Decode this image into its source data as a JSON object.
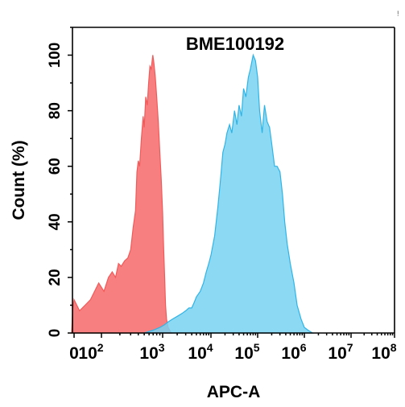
{
  "chart_data": {
    "type": "area",
    "title": "BME100192",
    "xlabel": "APC-A",
    "ylabel": "Count (%)",
    "xscale": "biexponential",
    "ylim": [
      0,
      110
    ],
    "xlim": [
      -100,
      100000000
    ],
    "yticks": [
      0,
      20,
      40,
      60,
      80,
      100
    ],
    "xticks": [
      {
        "value": 0,
        "base": "0",
        "exp": ""
      },
      {
        "value": 100,
        "base": "10",
        "exp": "2"
      },
      {
        "value": 1000,
        "base": "10",
        "exp": "3"
      },
      {
        "value": 10000,
        "base": "10",
        "exp": "4"
      },
      {
        "value": 100000,
        "base": "10",
        "exp": "5"
      },
      {
        "value": 1000000,
        "base": "10",
        "exp": "6"
      },
      {
        "value": 10000000,
        "base": "10",
        "exp": "7"
      },
      {
        "value": 100000000,
        "base": "10",
        "exp": "8"
      }
    ],
    "grid": false,
    "legend": "none",
    "corner_mark": "!",
    "series": [
      {
        "color": "#f05a5a",
        "fill": "#f87878",
        "points": [
          [
            -100,
            0
          ],
          [
            -60,
            8
          ],
          [
            -30,
            10
          ],
          [
            0,
            12
          ],
          [
            20,
            8
          ],
          [
            40,
            10
          ],
          [
            60,
            12
          ],
          [
            90,
            18
          ],
          [
            110,
            15
          ],
          [
            130,
            20
          ],
          [
            150,
            22
          ],
          [
            170,
            20
          ],
          [
            190,
            25
          ],
          [
            210,
            24
          ],
          [
            240,
            26
          ],
          [
            270,
            27
          ],
          [
            300,
            30
          ],
          [
            330,
            38
          ],
          [
            360,
            44
          ],
          [
            380,
            58
          ],
          [
            400,
            62
          ],
          [
            420,
            60
          ],
          [
            450,
            70
          ],
          [
            480,
            78
          ],
          [
            500,
            74
          ],
          [
            530,
            85
          ],
          [
            560,
            82
          ],
          [
            590,
            90
          ],
          [
            620,
            96
          ],
          [
            650,
            95
          ],
          [
            690,
            100
          ],
          [
            720,
            97
          ],
          [
            760,
            92
          ],
          [
            800,
            85
          ],
          [
            850,
            76
          ],
          [
            900,
            65
          ],
          [
            950,
            55
          ],
          [
            1000,
            43
          ],
          [
            1050,
            30
          ],
          [
            1100,
            20
          ],
          [
            1150,
            10
          ],
          [
            1200,
            5
          ],
          [
            1300,
            2
          ],
          [
            1500,
            0
          ]
        ]
      },
      {
        "color": "#2fb4e6",
        "fill": "#78d2f2",
        "points": [
          [
            500,
            0
          ],
          [
            700,
            1
          ],
          [
            900,
            2
          ],
          [
            1100,
            3
          ],
          [
            1300,
            4
          ],
          [
            1600,
            5
          ],
          [
            2000,
            6
          ],
          [
            2500,
            7
          ],
          [
            3000,
            8
          ],
          [
            3500,
            9
          ],
          [
            4000,
            9
          ],
          [
            4500,
            11
          ],
          [
            5000,
            13
          ],
          [
            6000,
            15
          ],
          [
            7000,
            18
          ],
          [
            8000,
            22
          ],
          [
            9000,
            25
          ],
          [
            10000,
            28
          ],
          [
            12000,
            35
          ],
          [
            14000,
            45
          ],
          [
            16000,
            55
          ],
          [
            18000,
            65
          ],
          [
            20000,
            68
          ],
          [
            22000,
            72
          ],
          [
            25000,
            75
          ],
          [
            28000,
            72
          ],
          [
            32000,
            80
          ],
          [
            36000,
            75
          ],
          [
            40000,
            82
          ],
          [
            45000,
            78
          ],
          [
            50000,
            88
          ],
          [
            56000,
            85
          ],
          [
            63000,
            92
          ],
          [
            70000,
            95
          ],
          [
            80000,
            100
          ],
          [
            90000,
            98
          ],
          [
            100000,
            92
          ],
          [
            110000,
            80
          ],
          [
            125000,
            72
          ],
          [
            140000,
            82
          ],
          [
            160000,
            76
          ],
          [
            180000,
            74
          ],
          [
            200000,
            68
          ],
          [
            230000,
            60
          ],
          [
            260000,
            60
          ],
          [
            300000,
            58
          ],
          [
            340000,
            50
          ],
          [
            380000,
            40
          ],
          [
            430000,
            32
          ],
          [
            500000,
            25
          ],
          [
            600000,
            18
          ],
          [
            700000,
            10
          ],
          [
            850000,
            5
          ],
          [
            1000000,
            2
          ],
          [
            1200000,
            1
          ],
          [
            1500000,
            0
          ]
        ]
      }
    ]
  }
}
